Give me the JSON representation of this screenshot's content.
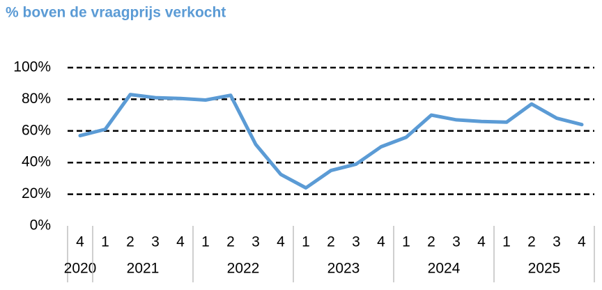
{
  "chart_data": {
    "type": "line",
    "title": "% boven de vraagprijs verkocht",
    "groups": [
      {
        "label": "2020",
        "categories": [
          "4"
        ]
      },
      {
        "label": "2021",
        "categories": [
          "1",
          "2",
          "3",
          "4"
        ]
      },
      {
        "label": "2022",
        "categories": [
          "1",
          "2",
          "3",
          "4"
        ]
      },
      {
        "label": "2023",
        "categories": [
          "1",
          "2",
          "3",
          "4"
        ]
      },
      {
        "label": "2024",
        "categories": [
          "1",
          "2",
          "3",
          "4"
        ]
      },
      {
        "label": "2025",
        "categories": [
          "1",
          "2",
          "3",
          "4"
        ]
      }
    ],
    "values": [
      57,
      61,
      83,
      81,
      80.5,
      79.5,
      82.5,
      51.5,
      32.5,
      24,
      35,
      39,
      50,
      56,
      70,
      67,
      66,
      65.5,
      77,
      68,
      64
    ],
    "color": "#5b9bd5",
    "ylim": [
      0,
      100
    ],
    "yticks": [
      {
        "value": 0,
        "label": "0%"
      },
      {
        "value": 20,
        "label": "20%"
      },
      {
        "value": 40,
        "label": "40%"
      },
      {
        "value": 60,
        "label": "60%"
      },
      {
        "value": 80,
        "label": "80%"
      },
      {
        "value": 100,
        "label": "100%"
      }
    ],
    "grid": true
  }
}
